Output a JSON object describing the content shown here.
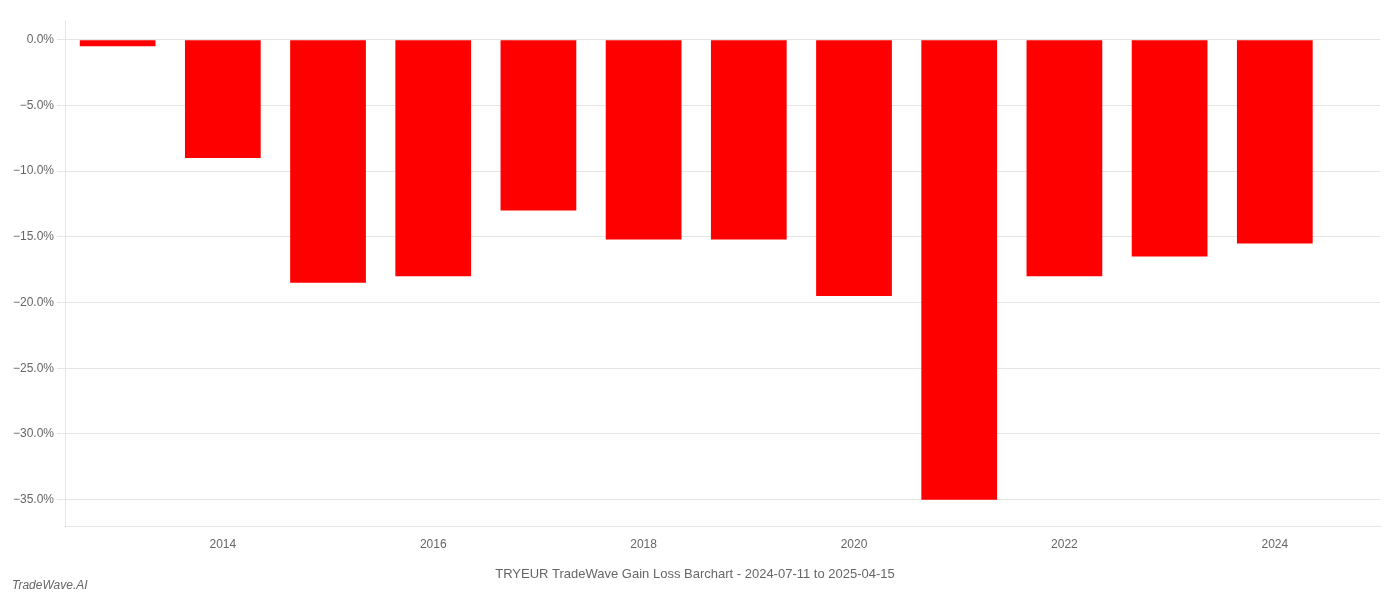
{
  "chart_data": {
    "type": "bar",
    "title": "TRYEUR TradeWave Gain Loss Barchart - 2024-07-11 to 2025-04-15",
    "annotations": [
      "TradeWave.AI"
    ],
    "x": [
      2013,
      2014,
      2015,
      2016,
      2017,
      2018,
      2019,
      2020,
      2021,
      2022,
      2023,
      2024
    ],
    "values": [
      -0.5,
      -9.0,
      -18.5,
      -18.0,
      -13.0,
      -15.2,
      -15.2,
      -19.5,
      -35.0,
      -18.0,
      -16.5,
      -15.5
    ],
    "color": "#ff0000",
    "xlim": [
      2012.5,
      2025.0
    ],
    "xticks": [
      2014,
      2016,
      2018,
      2020,
      2022,
      2024
    ],
    "ylim": [
      -37,
      1.5
    ],
    "yticks": [
      {
        "value": 0,
        "label": "0.0%"
      },
      {
        "value": -5,
        "label": "−5.0%"
      },
      {
        "value": -10,
        "label": "−10.0%"
      },
      {
        "value": -15,
        "label": "−15.0%"
      },
      {
        "value": -20,
        "label": "−20.0%"
      },
      {
        "value": -25,
        "label": "−25.0%"
      },
      {
        "value": -30,
        "label": "−30.0%"
      },
      {
        "value": -35,
        "label": "−35.0%"
      }
    ],
    "grid": true
  }
}
